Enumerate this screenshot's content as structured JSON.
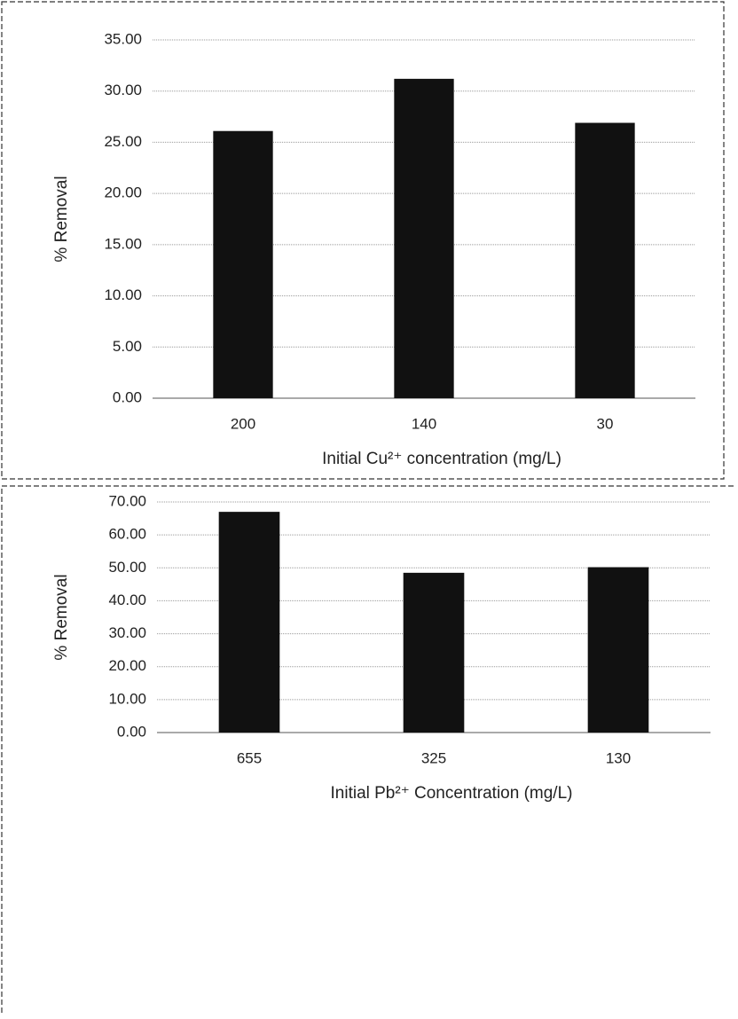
{
  "chart_data": [
    {
      "type": "bar",
      "y_label": "% Removal",
      "x_label": "Initial Cu²⁺ concentration (mg/L)",
      "categories": [
        "200",
        "140",
        "30"
      ],
      "values": [
        26.1,
        31.2,
        26.9
      ],
      "color": "#111111",
      "ylim": [
        0,
        35
      ],
      "yticks": [
        {
          "value": 0,
          "label": "0.00"
        },
        {
          "value": 5,
          "label": "5.00"
        },
        {
          "value": 10,
          "label": "10.00"
        },
        {
          "value": 15,
          "label": "15.00"
        },
        {
          "value": 20,
          "label": "20.00"
        },
        {
          "value": 25,
          "label": "25.00"
        },
        {
          "value": 30,
          "label": "30.00"
        },
        {
          "value": 35,
          "label": "35.00"
        }
      ],
      "grid": true
    },
    {
      "type": "bar",
      "y_label": "% Removal",
      "x_label": "Initial Pb²⁺ Concentration (mg/L)",
      "categories": [
        "655",
        "325",
        "130"
      ],
      "values": [
        67.0,
        48.5,
        50.2
      ],
      "color": "#111111",
      "ylim": [
        0,
        70
      ],
      "yticks": [
        {
          "value": 0,
          "label": "0.00"
        },
        {
          "value": 10,
          "label": "10.00"
        },
        {
          "value": 20,
          "label": "20.00"
        },
        {
          "value": 30,
          "label": "30.00"
        },
        {
          "value": 40,
          "label": "40.00"
        },
        {
          "value": 50,
          "label": "50.00"
        },
        {
          "value": 60,
          "label": "60.00"
        },
        {
          "value": 70,
          "label": "70.00"
        }
      ],
      "grid": true
    }
  ]
}
